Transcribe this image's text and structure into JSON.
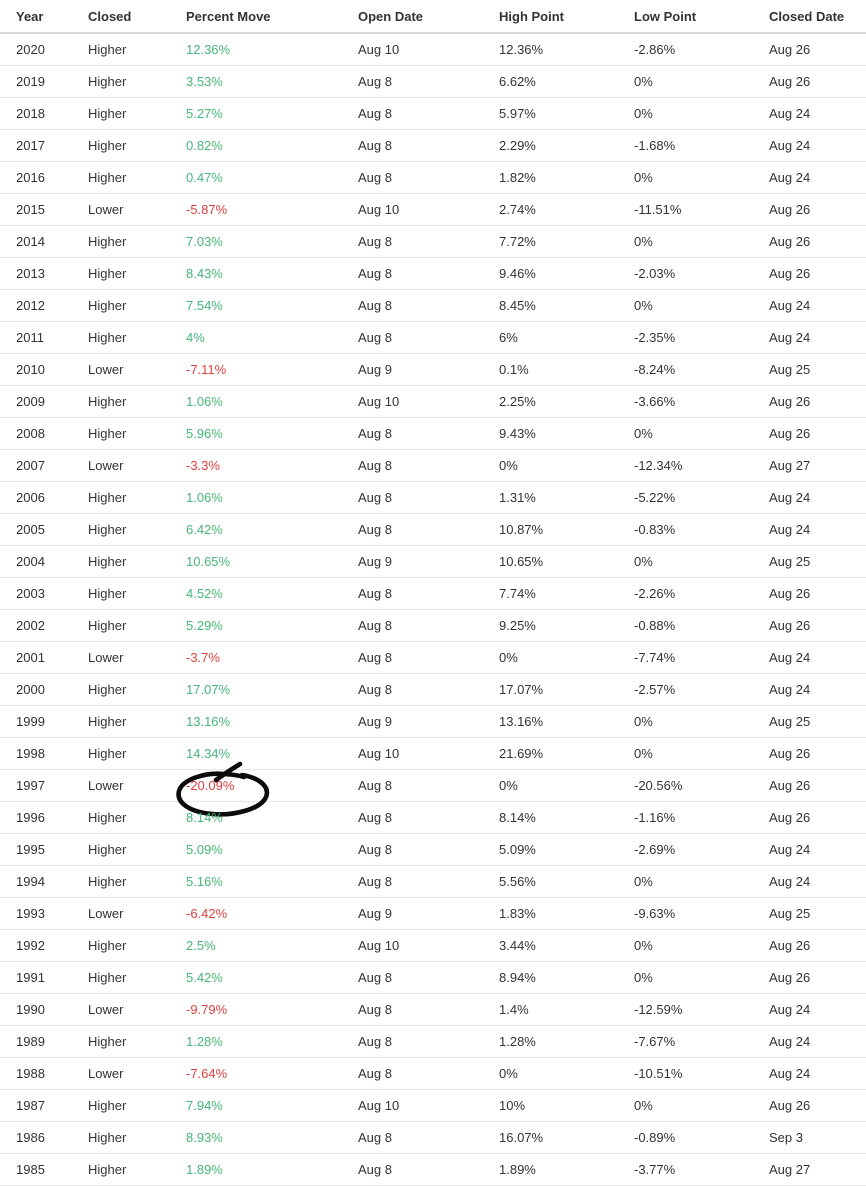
{
  "table": {
    "columns": [
      {
        "key": "year",
        "label": "Year"
      },
      {
        "key": "closed",
        "label": "Closed"
      },
      {
        "key": "percent_move",
        "label": "Percent Move"
      },
      {
        "key": "open_date",
        "label": "Open Date"
      },
      {
        "key": "high_point",
        "label": "High Point"
      },
      {
        "key": "low_point",
        "label": "Low Point"
      },
      {
        "key": "closed_date",
        "label": "Closed Date"
      }
    ],
    "rows": [
      {
        "year": "2020",
        "closed": "Higher",
        "percent_move": "12.36%",
        "open_date": "Aug 10",
        "high_point": "12.36%",
        "low_point": "-2.86%",
        "closed_date": "Aug 26",
        "pm_highlight": false,
        "hp_highlight": true,
        "pm_circled": false
      },
      {
        "year": "2019",
        "closed": "Higher",
        "percent_move": "3.53%",
        "open_date": "Aug 8",
        "high_point": "6.62%",
        "low_point": "0%",
        "closed_date": "Aug 26",
        "pm_highlight": false,
        "hp_highlight": true,
        "pm_circled": false
      },
      {
        "year": "2018",
        "closed": "Higher",
        "percent_move": "5.27%",
        "open_date": "Aug 8",
        "high_point": "5.97%",
        "low_point": "0%",
        "closed_date": "Aug 24",
        "pm_highlight": false,
        "hp_highlight": true,
        "pm_circled": false
      },
      {
        "year": "2017",
        "closed": "Higher",
        "percent_move": "0.82%",
        "open_date": "Aug 8",
        "high_point": "2.29%",
        "low_point": "-1.68%",
        "closed_date": "Aug 24",
        "pm_highlight": false,
        "hp_highlight": false,
        "pm_circled": false
      },
      {
        "year": "2016",
        "closed": "Higher",
        "percent_move": "0.47%",
        "open_date": "Aug 8",
        "high_point": "1.82%",
        "low_point": "0%",
        "closed_date": "Aug 24",
        "pm_highlight": false,
        "hp_highlight": false,
        "pm_circled": false
      },
      {
        "year": "2015",
        "closed": "Lower",
        "percent_move": "-5.87%",
        "open_date": "Aug 10",
        "high_point": "2.74%",
        "low_point": "-11.51%",
        "closed_date": "Aug 26",
        "pm_highlight": true,
        "hp_highlight": false,
        "pm_circled": false
      },
      {
        "year": "2014",
        "closed": "Higher",
        "percent_move": "7.03%",
        "open_date": "Aug 8",
        "high_point": "7.72%",
        "low_point": "0%",
        "closed_date": "Aug 26",
        "pm_highlight": false,
        "hp_highlight": true,
        "pm_circled": false
      },
      {
        "year": "2013",
        "closed": "Higher",
        "percent_move": "8.43%",
        "open_date": "Aug 8",
        "high_point": "9.46%",
        "low_point": "-2.03%",
        "closed_date": "Aug 26",
        "pm_highlight": false,
        "hp_highlight": true,
        "pm_circled": false
      },
      {
        "year": "2012",
        "closed": "Higher",
        "percent_move": "7.54%",
        "open_date": "Aug 8",
        "high_point": "8.45%",
        "low_point": "0%",
        "closed_date": "Aug 24",
        "pm_highlight": false,
        "hp_highlight": true,
        "pm_circled": false
      },
      {
        "year": "2011",
        "closed": "Higher",
        "percent_move": "4%",
        "open_date": "Aug 8",
        "high_point": "6%",
        "low_point": "-2.35%",
        "closed_date": "Aug 24",
        "pm_highlight": false,
        "hp_highlight": true,
        "pm_circled": false
      },
      {
        "year": "2010",
        "closed": "Lower",
        "percent_move": "-7.11%",
        "open_date": "Aug 9",
        "high_point": "0.1%",
        "low_point": "-8.24%",
        "closed_date": "Aug 25",
        "pm_highlight": true,
        "hp_highlight": false,
        "pm_circled": false
      },
      {
        "year": "2009",
        "closed": "Higher",
        "percent_move": "1.06%",
        "open_date": "Aug 10",
        "high_point": "2.25%",
        "low_point": "-3.66%",
        "closed_date": "Aug 26",
        "pm_highlight": false,
        "hp_highlight": false,
        "pm_circled": false
      },
      {
        "year": "2008",
        "closed": "Higher",
        "percent_move": "5.96%",
        "open_date": "Aug 8",
        "high_point": "9.43%",
        "low_point": "0%",
        "closed_date": "Aug 26",
        "pm_highlight": false,
        "hp_highlight": true,
        "pm_circled": false
      },
      {
        "year": "2007",
        "closed": "Lower",
        "percent_move": "-3.3%",
        "open_date": "Aug 8",
        "high_point": "0%",
        "low_point": "-12.34%",
        "closed_date": "Aug 27",
        "pm_highlight": true,
        "hp_highlight": false,
        "pm_circled": false
      },
      {
        "year": "2006",
        "closed": "Higher",
        "percent_move": "1.06%",
        "open_date": "Aug 8",
        "high_point": "1.31%",
        "low_point": "-5.22%",
        "closed_date": "Aug 24",
        "pm_highlight": false,
        "hp_highlight": false,
        "pm_circled": false
      },
      {
        "year": "2005",
        "closed": "Higher",
        "percent_move": "6.42%",
        "open_date": "Aug 8",
        "high_point": "10.87%",
        "low_point": "-0.83%",
        "closed_date": "Aug 24",
        "pm_highlight": false,
        "hp_highlight": true,
        "pm_circled": false
      },
      {
        "year": "2004",
        "closed": "Higher",
        "percent_move": "10.65%",
        "open_date": "Aug 9",
        "high_point": "10.65%",
        "low_point": "0%",
        "closed_date": "Aug 25",
        "pm_highlight": false,
        "hp_highlight": true,
        "pm_circled": false
      },
      {
        "year": "2003",
        "closed": "Higher",
        "percent_move": "4.52%",
        "open_date": "Aug 8",
        "high_point": "7.74%",
        "low_point": "-2.26%",
        "closed_date": "Aug 26",
        "pm_highlight": false,
        "hp_highlight": true,
        "pm_circled": false
      },
      {
        "year": "2002",
        "closed": "Higher",
        "percent_move": "5.29%",
        "open_date": "Aug 8",
        "high_point": "9.25%",
        "low_point": "-0.88%",
        "closed_date": "Aug 26",
        "pm_highlight": false,
        "hp_highlight": true,
        "pm_circled": false
      },
      {
        "year": "2001",
        "closed": "Lower",
        "percent_move": "-3.7%",
        "open_date": "Aug 8",
        "high_point": "0%",
        "low_point": "-7.74%",
        "closed_date": "Aug 24",
        "pm_highlight": true,
        "hp_highlight": false,
        "pm_circled": false
      },
      {
        "year": "2000",
        "closed": "Higher",
        "percent_move": "17.07%",
        "open_date": "Aug 8",
        "high_point": "17.07%",
        "low_point": "-2.57%",
        "closed_date": "Aug 24",
        "pm_highlight": false,
        "hp_highlight": true,
        "pm_circled": false
      },
      {
        "year": "1999",
        "closed": "Higher",
        "percent_move": "13.16%",
        "open_date": "Aug 9",
        "high_point": "13.16%",
        "low_point": "0%",
        "closed_date": "Aug 25",
        "pm_highlight": false,
        "hp_highlight": true,
        "pm_circled": false
      },
      {
        "year": "1998",
        "closed": "Higher",
        "percent_move": "14.34%",
        "open_date": "Aug 10",
        "high_point": "21.69%",
        "low_point": "0%",
        "closed_date": "Aug 26",
        "pm_highlight": false,
        "hp_highlight": true,
        "pm_circled": false
      },
      {
        "year": "1997",
        "closed": "Lower",
        "percent_move": "-20.09%",
        "open_date": "Aug 8",
        "high_point": "0%",
        "low_point": "-20.56%",
        "closed_date": "Aug 26",
        "pm_highlight": true,
        "hp_highlight": false,
        "pm_circled": true
      },
      {
        "year": "1996",
        "closed": "Higher",
        "percent_move": "8.14%",
        "open_date": "Aug 8",
        "high_point": "8.14%",
        "low_point": "-1.16%",
        "closed_date": "Aug 26",
        "pm_highlight": false,
        "hp_highlight": true,
        "pm_circled": false
      },
      {
        "year": "1995",
        "closed": "Higher",
        "percent_move": "5.09%",
        "open_date": "Aug 8",
        "high_point": "5.09%",
        "low_point": "-2.69%",
        "closed_date": "Aug 24",
        "pm_highlight": false,
        "hp_highlight": true,
        "pm_circled": false
      },
      {
        "year": "1994",
        "closed": "Higher",
        "percent_move": "5.16%",
        "open_date": "Aug 8",
        "high_point": "5.56%",
        "low_point": "0%",
        "closed_date": "Aug 24",
        "pm_highlight": false,
        "hp_highlight": true,
        "pm_circled": false
      },
      {
        "year": "1993",
        "closed": "Lower",
        "percent_move": "-6.42%",
        "open_date": "Aug 9",
        "high_point": "1.83%",
        "low_point": "-9.63%",
        "closed_date": "Aug 25",
        "pm_highlight": true,
        "hp_highlight": false,
        "pm_circled": false
      },
      {
        "year": "1992",
        "closed": "Higher",
        "percent_move": "2.5%",
        "open_date": "Aug 10",
        "high_point": "3.44%",
        "low_point": "0%",
        "closed_date": "Aug 26",
        "pm_highlight": false,
        "hp_highlight": false,
        "pm_circled": false
      },
      {
        "year": "1991",
        "closed": "Higher",
        "percent_move": "5.42%",
        "open_date": "Aug 8",
        "high_point": "8.94%",
        "low_point": "0%",
        "closed_date": "Aug 26",
        "pm_highlight": false,
        "hp_highlight": true,
        "pm_circled": false
      },
      {
        "year": "1990",
        "closed": "Lower",
        "percent_move": "-9.79%",
        "open_date": "Aug 8",
        "high_point": "1.4%",
        "low_point": "-12.59%",
        "closed_date": "Aug 24",
        "pm_highlight": true,
        "hp_highlight": false,
        "pm_circled": false
      },
      {
        "year": "1989",
        "closed": "Higher",
        "percent_move": "1.28%",
        "open_date": "Aug 8",
        "high_point": "1.28%",
        "low_point": "-7.67%",
        "closed_date": "Aug 24",
        "pm_highlight": false,
        "hp_highlight": false,
        "pm_circled": false
      },
      {
        "year": "1988",
        "closed": "Lower",
        "percent_move": "-7.64%",
        "open_date": "Aug 8",
        "high_point": "0%",
        "low_point": "-10.51%",
        "closed_date": "Aug 24",
        "pm_highlight": true,
        "hp_highlight": false,
        "pm_circled": false
      },
      {
        "year": "1987",
        "closed": "Higher",
        "percent_move": "7.94%",
        "open_date": "Aug 10",
        "high_point": "10%",
        "low_point": "0%",
        "closed_date": "Aug 26",
        "pm_highlight": false,
        "hp_highlight": true,
        "pm_circled": false
      },
      {
        "year": "1986",
        "closed": "Higher",
        "percent_move": "8.93%",
        "open_date": "Aug 8",
        "high_point": "16.07%",
        "low_point": "-0.89%",
        "closed_date": "Sep 3",
        "pm_highlight": false,
        "hp_highlight": true,
        "pm_circled": false
      },
      {
        "year": "1985",
        "closed": "Higher",
        "percent_move": "1.89%",
        "open_date": "Aug 8",
        "high_point": "1.89%",
        "low_point": "-3.77%",
        "closed_date": "Aug 27",
        "pm_highlight": false,
        "hp_highlight": false,
        "pm_circled": false
      }
    ]
  },
  "annotations": {
    "highlighter_color": "#FBE106",
    "circle_color": "#0C0C0C",
    "positive_text_color": "#47B57A",
    "negative_text_color": "#E2403E",
    "body_text_color": "#333333",
    "row_border_color": "#E7E7E7"
  }
}
